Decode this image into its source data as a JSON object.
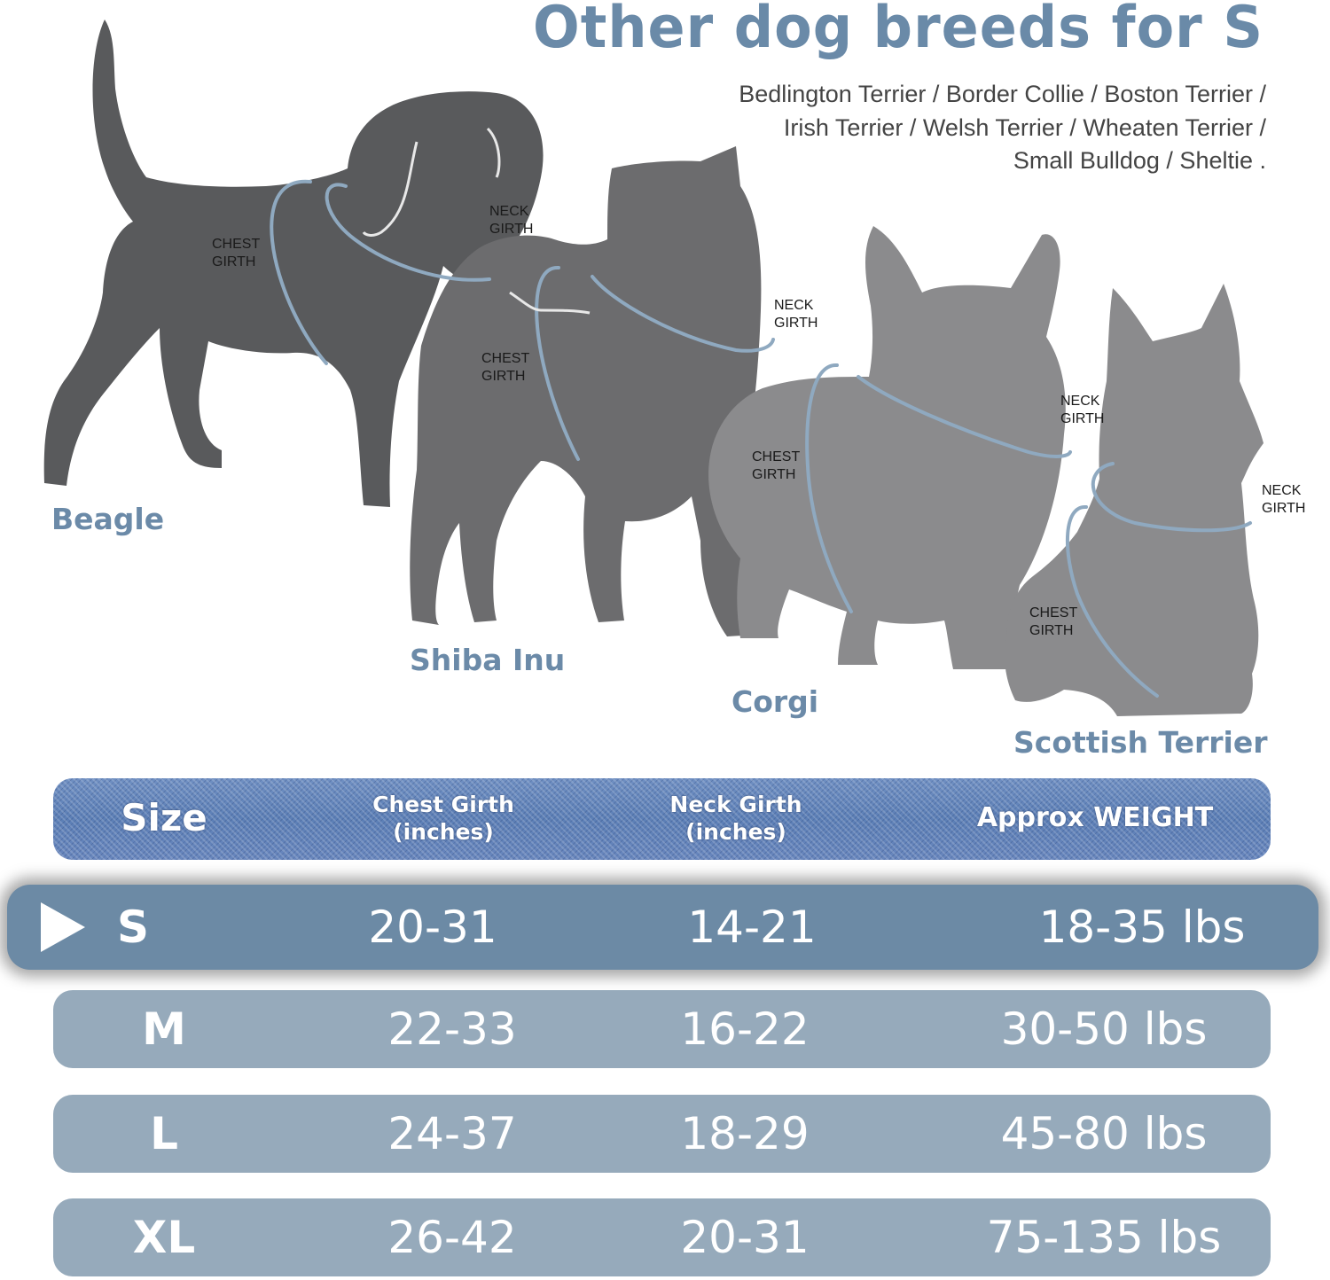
{
  "title": "Other dog breeds for S",
  "breed_list": [
    "Bedlington Terrier / Border Collie / Boston Terrier /",
    "Irish Terrier / Welsh Terrier / Wheaten Terrier /",
    "Small Bulldog / Sheltie ."
  ],
  "dogs": [
    {
      "name": "Beagle",
      "chest": [
        "CHEST",
        "GIRTH"
      ],
      "neck": [
        "NECK",
        "GIRTH"
      ]
    },
    {
      "name": "Shiba Inu",
      "chest": [
        "CHEST",
        "GIRTH"
      ],
      "neck": [
        "NECK",
        "GIRTH"
      ]
    },
    {
      "name": "Corgi",
      "chest": [
        "CHEST",
        "GIRTH"
      ],
      "neck": [
        "NECK",
        "GIRTH"
      ]
    },
    {
      "name": "Scottish Terrier",
      "chest": [
        "CHEST",
        "GIRTH"
      ],
      "neck": [
        "NECK",
        "GIRTH"
      ]
    }
  ],
  "colors": {
    "accent": "#6a8aa8",
    "selected_row": "#6c8aa5",
    "row": "#96aabb",
    "header_denim": "#5c7fb6"
  },
  "table": {
    "headers": {
      "size": "Size",
      "chest": [
        "Chest Girth",
        "(inches)"
      ],
      "neck": [
        "Neck Girth",
        "(inches)"
      ],
      "weight": "Approx WEIGHT"
    },
    "rows": [
      {
        "size": "S",
        "chest": "20-31",
        "neck": "14-21",
        "weight": "18-35 lbs",
        "selected": true,
        "marker_icon": "play-triangle-icon"
      },
      {
        "size": "M",
        "chest": "22-33",
        "neck": "16-22",
        "weight": "30-50 lbs"
      },
      {
        "size": "L",
        "chest": "24-37",
        "neck": "18-29",
        "weight": "45-80 lbs"
      },
      {
        "size": "XL",
        "chest": "26-42",
        "neck": "20-31",
        "weight": "75-135 lbs"
      }
    ]
  }
}
